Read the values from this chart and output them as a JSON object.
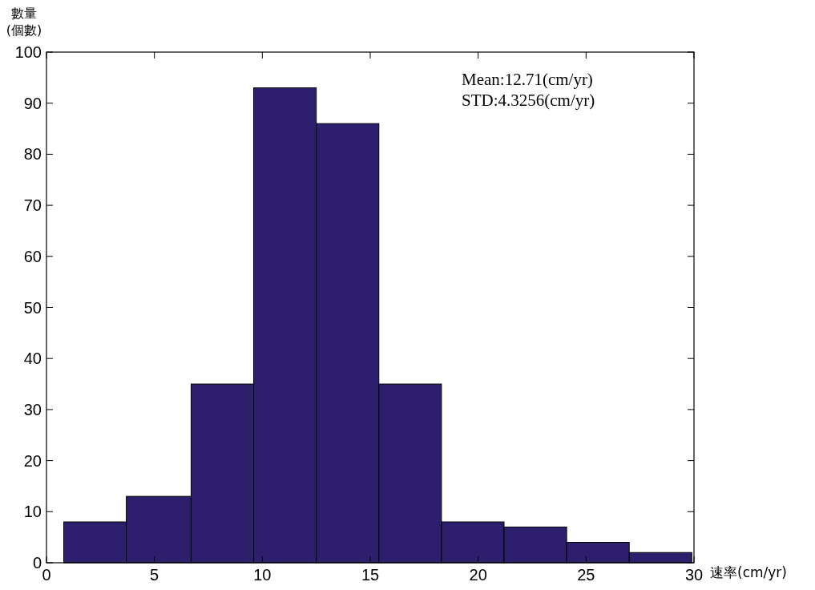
{
  "chart_data": {
    "type": "histogram",
    "xlabel": "速率(cm/yr)",
    "ylabel": "數量\n(個數)",
    "annotations": [
      "Mean:12.71(cm/yr)",
      "STD:4.3256(cm/yr)"
    ],
    "bins": [
      0.8,
      3.7,
      6.7,
      9.6,
      12.5,
      15.4,
      18.3,
      21.2,
      24.1,
      27.0,
      29.9
    ],
    "values": [
      8,
      13,
      35,
      93,
      86,
      35,
      8,
      7,
      4,
      2
    ],
    "color": "#2e1e6e",
    "xlim": [
      0,
      30
    ],
    "xticks": [
      0,
      5,
      10,
      15,
      20,
      25,
      30
    ],
    "ylim": [
      0,
      100
    ],
    "yticks": [
      0,
      10,
      20,
      30,
      40,
      50,
      60,
      70,
      80,
      90,
      100
    ]
  }
}
